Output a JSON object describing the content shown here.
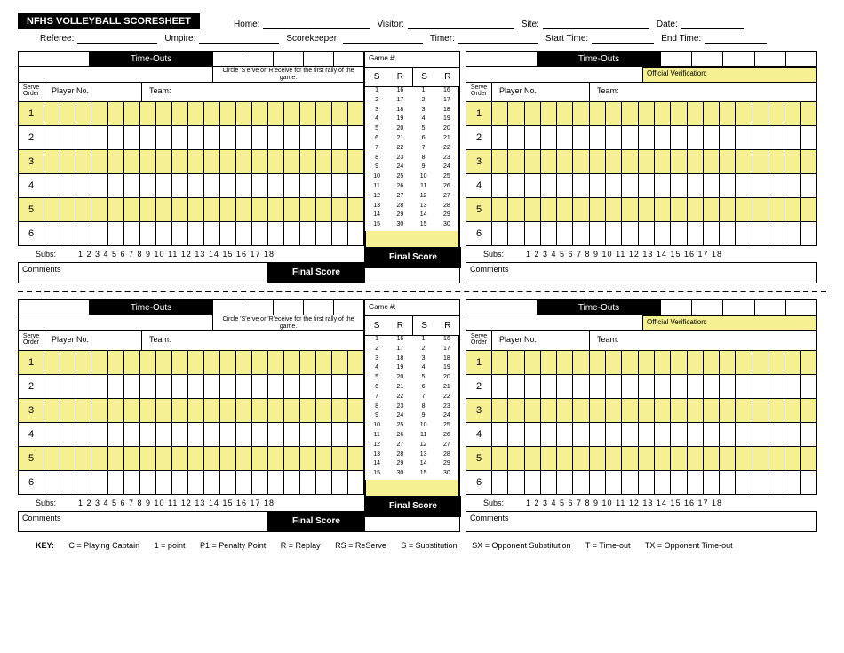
{
  "title": "NFHS VOLLEYBALL SCORESHEET",
  "header1": {
    "home": "Home:",
    "visitor": "Visitor:",
    "site": "Site:",
    "date": "Date:"
  },
  "header2": {
    "referee": "Referee:",
    "umpire": "Umpire:",
    "scorekeeper": "Scorekeeper:",
    "timer": "Timer:",
    "start": "Start Time:",
    "end": "End Time:"
  },
  "timeouts": "Time-Outs",
  "instr": "Circle 'S'erve or 'R'eceive for the first rally of the game.",
  "gamenum": "Game #:",
  "serveorder": "Serve Order",
  "playerno": "Player No.",
  "team": "Team:",
  "official": "Official Verification:",
  "S": "S",
  "R": "R",
  "subs": "Subs:",
  "subnums": "1  2  3  4  5  6  7  8  9  10  11  12  13  14  15  16  17  18",
  "comments": "Comments",
  "finalscore": "Final Score",
  "rows": [
    1,
    2,
    3,
    4,
    5,
    6
  ],
  "key": {
    "label": "KEY:",
    "items": [
      "C = Playing Captain",
      "1 = point",
      "P1 = Penalty Point",
      "R = Replay",
      "RS = ReServe",
      "S = Substitution",
      "SX = Opponent Substitution",
      "T = Time-out",
      "TX = Opponent Time-out"
    ]
  },
  "scorenums": [
    [
      1,
      16
    ],
    [
      2,
      17
    ],
    [
      3,
      18
    ],
    [
      4,
      19
    ],
    [
      5,
      20
    ],
    [
      6,
      21
    ],
    [
      7,
      22
    ],
    [
      8,
      23
    ],
    [
      9,
      24
    ],
    [
      10,
      25
    ],
    [
      11,
      26
    ],
    [
      12,
      27
    ],
    [
      13,
      28
    ],
    [
      14,
      29
    ],
    [
      15,
      30
    ]
  ],
  "colors": {
    "yellow": "#f5f092",
    "black": "#000000",
    "white": "#ffffff"
  }
}
